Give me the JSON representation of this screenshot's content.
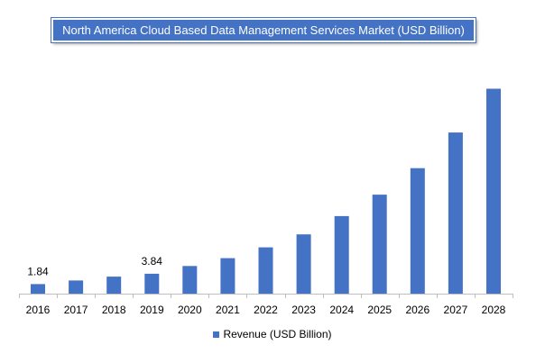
{
  "chart_data": {
    "type": "bar",
    "title": "North America Cloud Based Data Management Services Market (USD Billion)",
    "categories": [
      "2016",
      "2017",
      "2018",
      "2019",
      "2020",
      "2021",
      "2022",
      "2023",
      "2024",
      "2025",
      "2026",
      "2027",
      "2028"
    ],
    "series": [
      {
        "name": "Revenue (USD Billion)",
        "values": [
          1.84,
          2.54,
          3.28,
          3.84,
          5.34,
          6.86,
          8.94,
          11.44,
          14.98,
          19.12,
          24.23,
          31.12,
          39.56
        ],
        "color": "#4472C4"
      }
    ],
    "data_labels": [
      {
        "index": 0,
        "text": "1.84"
      },
      {
        "index": 3,
        "text": "3.84"
      }
    ],
    "ylim": [
      0,
      40
    ],
    "xlabel": "",
    "ylabel": "",
    "grid": false,
    "legend": "bottom"
  }
}
